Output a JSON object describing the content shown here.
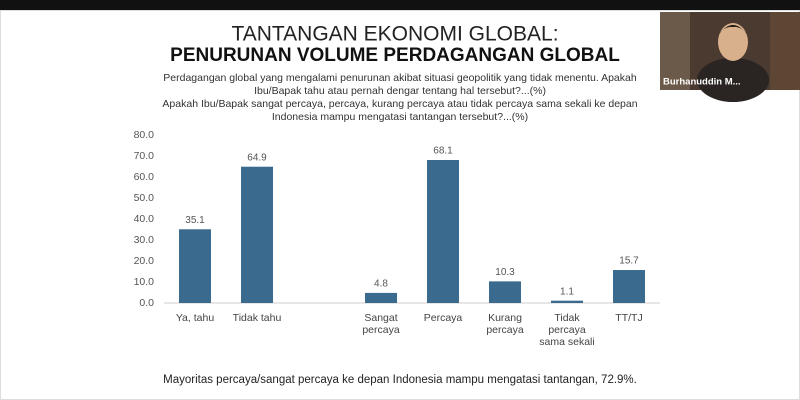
{
  "window": {
    "participant_name": "Burhanuddin M..."
  },
  "slide": {
    "title": "TANTANGAN EKONOMI GLOBAL:",
    "heading": "PENURUNAN VOLUME PERDAGANGAN GLOBAL",
    "question_lines": [
      "Perdagangan global yang mengalami penurunan akibat situasi geopolitik yang tidak menentu. Apakah",
      "Ibu/Bapak tahu atau pernah dengar tentang hal tersebut?...(%)",
      "Apakah Ibu/Bapak sangat percaya, percaya, kurang percaya atau tidak percaya sama sekali ke depan",
      "Indonesia mampu mengatasi tantangan tersebut?...(%)"
    ],
    "footer": "Mayoritas percaya/sangat percaya ke depan Indonesia mampu mengatasi tantangan, 72.9%."
  },
  "chart_data": {
    "type": "bar",
    "categories": [
      "Ya, tahu",
      "Tidak tahu",
      null,
      "Sangat percaya",
      "Percaya",
      "Kurang percaya",
      "Tidak percaya sama sekali",
      "TT/TJ"
    ],
    "values": [
      35.1,
      64.9,
      null,
      4.8,
      68.1,
      10.3,
      1.1,
      15.7
    ],
    "color": "#3a6b8f",
    "ylim": [
      0,
      80
    ],
    "yticks": [
      {
        "value": 0,
        "label": "0.0"
      },
      {
        "value": 10,
        "label": "10.0"
      },
      {
        "value": 20,
        "label": "20.0"
      },
      {
        "value": 30,
        "label": "30.0"
      },
      {
        "value": 40,
        "label": "40.0"
      },
      {
        "value": 50,
        "label": "50.0"
      },
      {
        "value": 60,
        "label": "60.0"
      },
      {
        "value": 70,
        "label": "70.0"
      },
      {
        "value": 80,
        "label": "80.0"
      }
    ],
    "grid": false
  }
}
